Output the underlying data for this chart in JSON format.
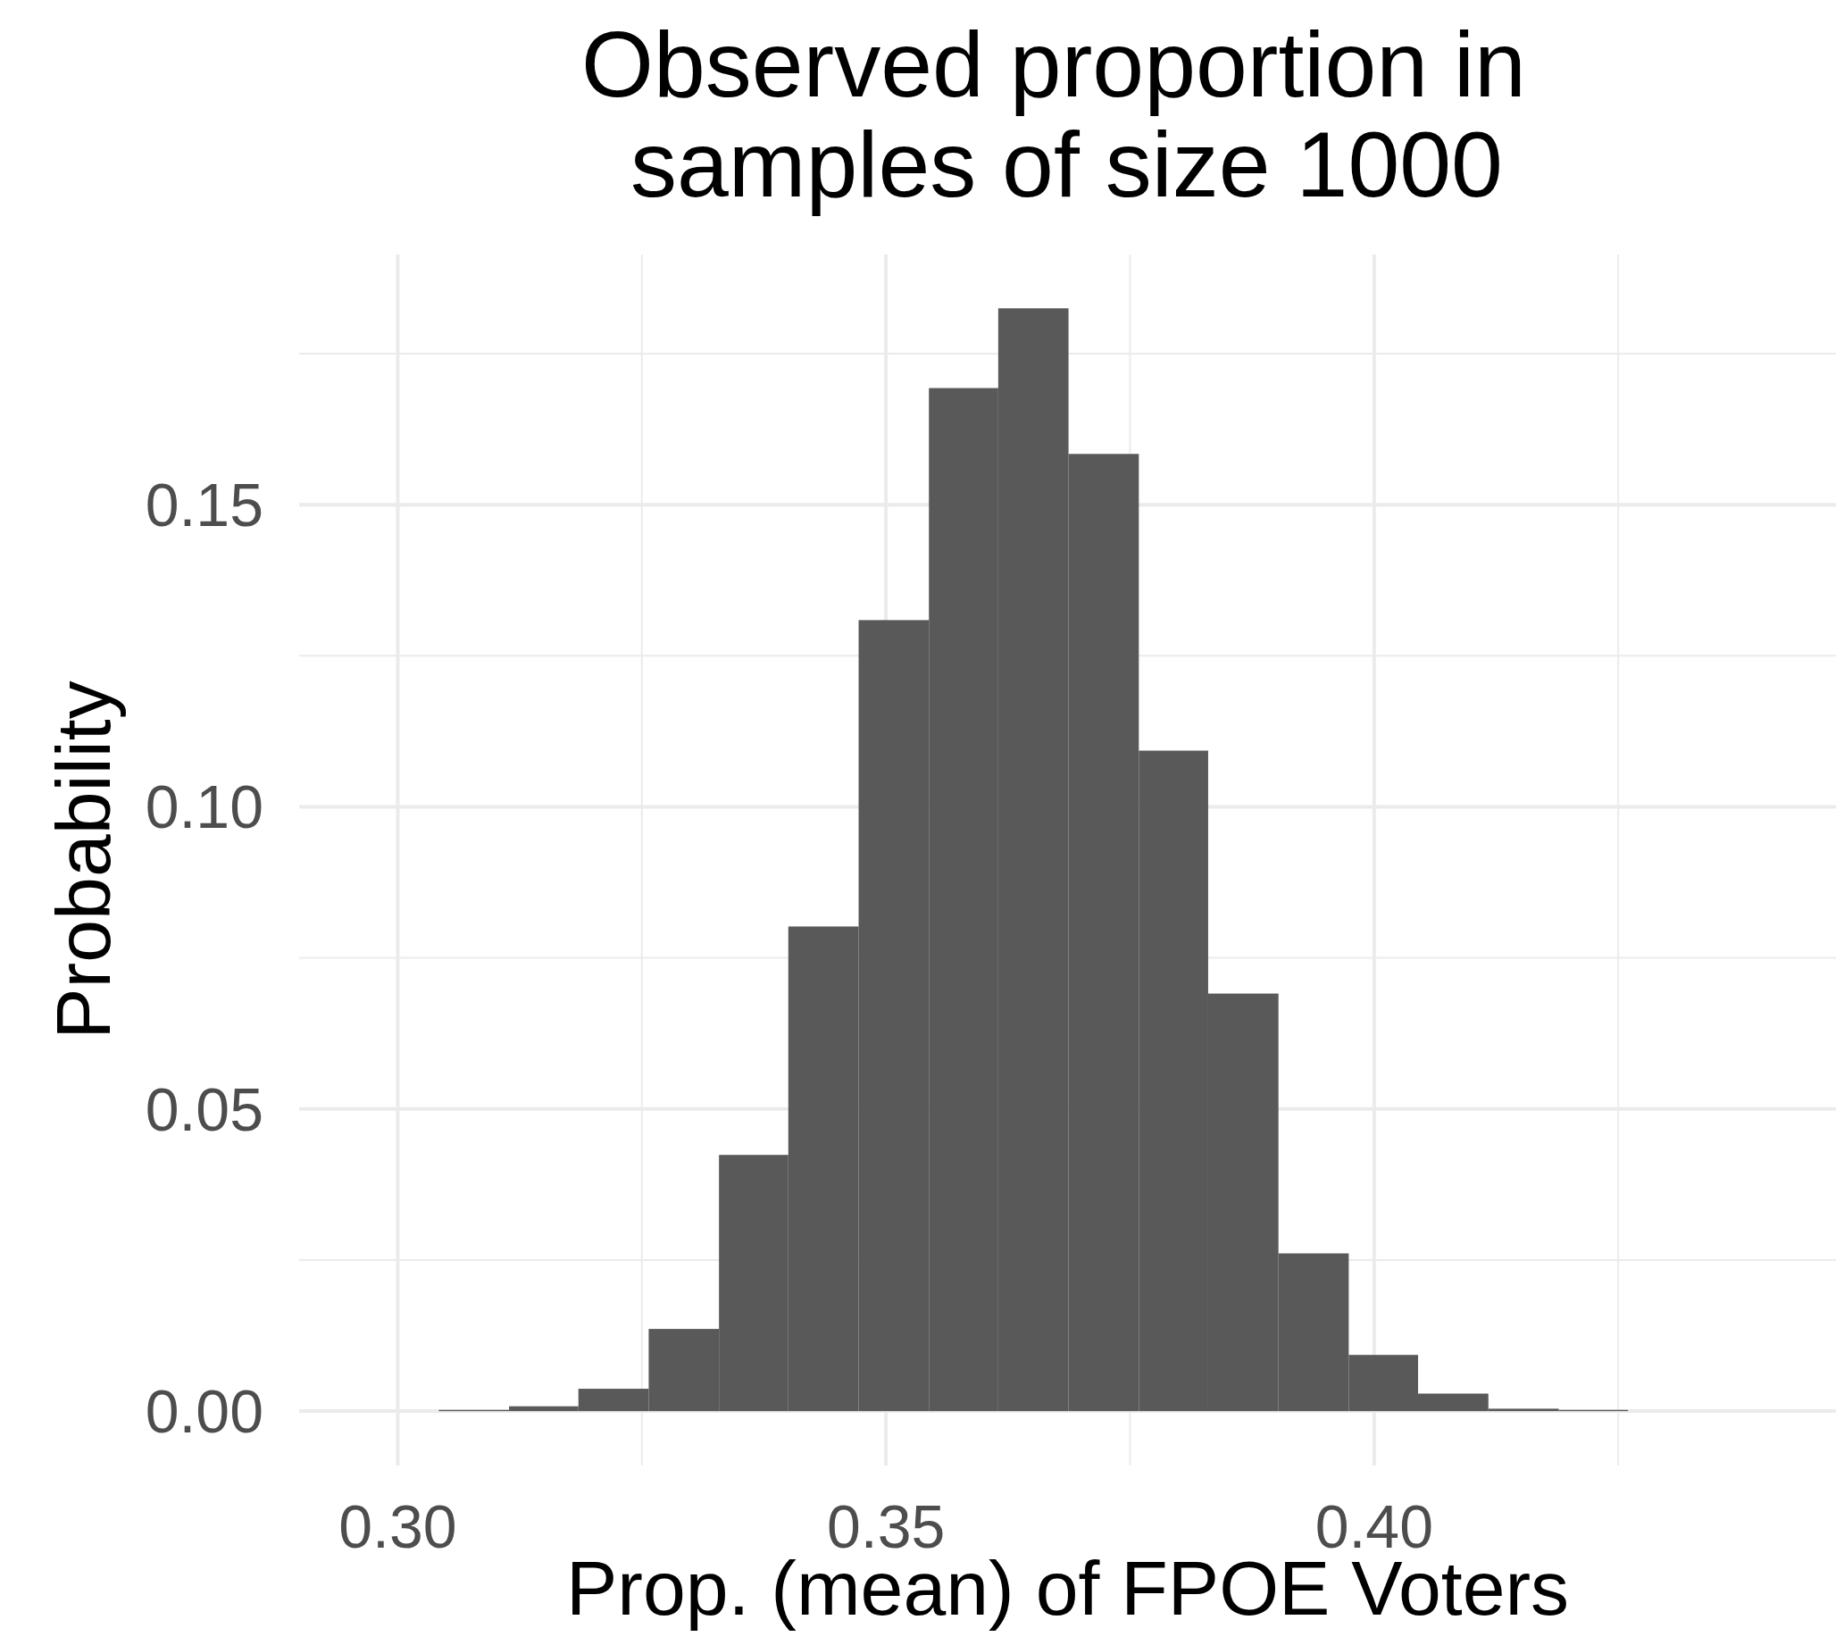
{
  "chart_data": {
    "type": "histogram",
    "title": "Observed proportion in\n samples of size 1000",
    "xlabel": "Prop. (mean) of FPOE Voters",
    "ylabel": "Probability",
    "bins": [
      0.3042,
      0.3114,
      0.3185,
      0.3257,
      0.3329,
      0.34,
      0.3472,
      0.3544,
      0.3615,
      0.3687,
      0.3759,
      0.383,
      0.3902,
      0.3974,
      0.4045,
      0.4117,
      0.4189,
      0.426
    ],
    "values": [
      0.0002,
      0.0008,
      0.0037,
      0.0136,
      0.0424,
      0.0802,
      0.1309,
      0.1693,
      0.1825,
      0.1584,
      0.1093,
      0.0691,
      0.0261,
      0.0093,
      0.0029,
      0.0004,
      0.0002
    ],
    "color": "#595959",
    "xlim": [
      0.2899,
      0.4473
    ],
    "ylim": [
      -0.009,
      0.1914
    ],
    "xticks": [
      {
        "value": 0.3,
        "label": "0.30"
      },
      {
        "value": 0.325,
        "label": null
      },
      {
        "value": 0.35,
        "label": "0.35"
      },
      {
        "value": 0.375,
        "label": null
      },
      {
        "value": 0.4,
        "label": "0.40"
      },
      {
        "value": 0.425,
        "label": null
      }
    ],
    "yticks": [
      {
        "value": 0,
        "label": "0.00"
      },
      {
        "value": 0.025,
        "label": null
      },
      {
        "value": 0.05,
        "label": "0.05"
      },
      {
        "value": 0.075,
        "label": null
      },
      {
        "value": 0.1,
        "label": "0.10"
      },
      {
        "value": 0.125,
        "label": null
      },
      {
        "value": 0.15,
        "label": "0.15"
      },
      {
        "value": 0.175,
        "label": null
      }
    ],
    "grid": true
  }
}
